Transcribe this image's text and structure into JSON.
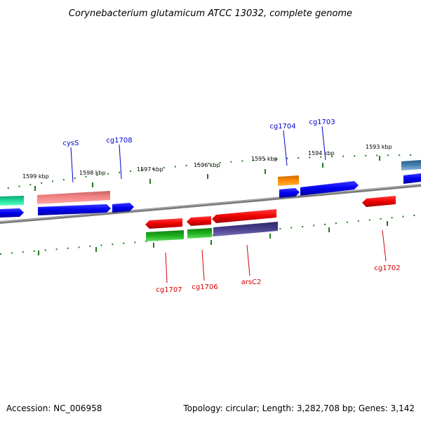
{
  "title": "Corynebacterium glutamicum ATCC 13032, complete genome",
  "accession": "Accession: NC_006958",
  "summary": "Topology: circular; Length: 3,282,708 bp; Genes: 3,142",
  "kbp_labels": [
    "1599 kbp",
    "1598 kbp",
    "1597 kbp",
    "1596 kbp",
    "1595 kbp",
    "1594 kbp",
    "1593 kbp"
  ],
  "forward_gene_labels": [
    "cysS",
    "cg1708",
    "cg1704",
    "cg1703"
  ],
  "reverse_gene_labels": [
    "cg1707",
    "cg1706",
    "arsC2",
    "cg1702"
  ],
  "colors": {
    "backbone": "#7a7a7a",
    "tick": "#1e7a1e",
    "forward_label": "#0000c8",
    "reverse_label": "#d40000",
    "cds_forward": "#0000f0",
    "cds_reverse": "#f00000",
    "gc_pink": "#f08080",
    "orange": "#ff8c00",
    "teal": "#20e0a0",
    "green": "#20b020",
    "slate": "#4a3f8c",
    "steel": "#4682b4"
  }
}
